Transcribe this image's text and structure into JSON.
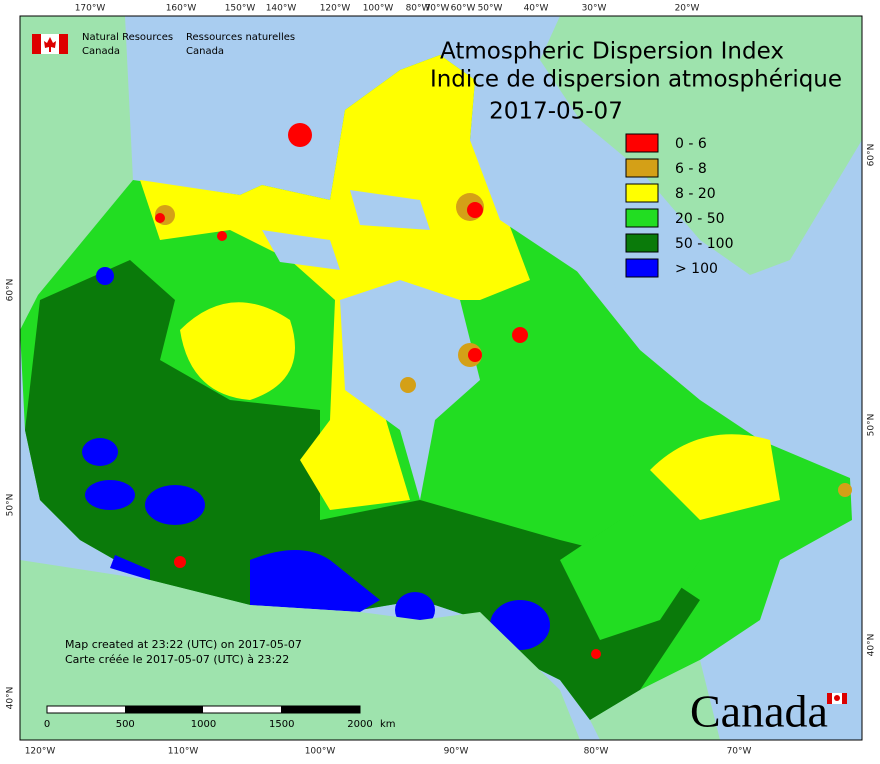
{
  "header": {
    "agency_en": [
      "Natural Resources",
      "Canada"
    ],
    "agency_fr": [
      "Ressources naturelles",
      "Canada"
    ]
  },
  "title": [
    "Atmospheric Dispersion Index",
    "Indice de dispersion atmosphérique",
    "2017-05-07"
  ],
  "legend": [
    {
      "label": "0 - 6",
      "color": "#ff0000"
    },
    {
      "label": "6 - 8",
      "color": "#d4a017"
    },
    {
      "label": "8 - 20",
      "color": "#ffff00"
    },
    {
      "label": "20 - 50",
      "color": "#22dd22"
    },
    {
      "label": "50 - 100",
      "color": "#0a7a0a"
    },
    {
      "label": "> 100",
      "color": "#0000ff"
    }
  ],
  "top_axis": [
    "170°W",
    "160°W",
    "150°W",
    "140°W",
    "120°W",
    "100°W",
    "80°W",
    "70°W",
    "60°W",
    "50°W",
    "40°W",
    "30°W",
    "20°W"
  ],
  "bottom_axis": [
    "120°W",
    "110°W",
    "100°W",
    "90°W",
    "80°W",
    "70°W"
  ],
  "left_axis": [
    "60°N",
    "50°N",
    "40°N"
  ],
  "right_axis": [
    "60°N",
    "50°N",
    "40°N"
  ],
  "notes": [
    "Map created at 23:22 (UTC) on 2017-05-07",
    "Carte créée le 2017-05-07 (UTC) à 23:22"
  ],
  "scale_bar": {
    "ticks": [
      "0",
      "500",
      "1000",
      "1500",
      "2000"
    ],
    "unit": "km"
  },
  "wordmark": "Canada"
}
